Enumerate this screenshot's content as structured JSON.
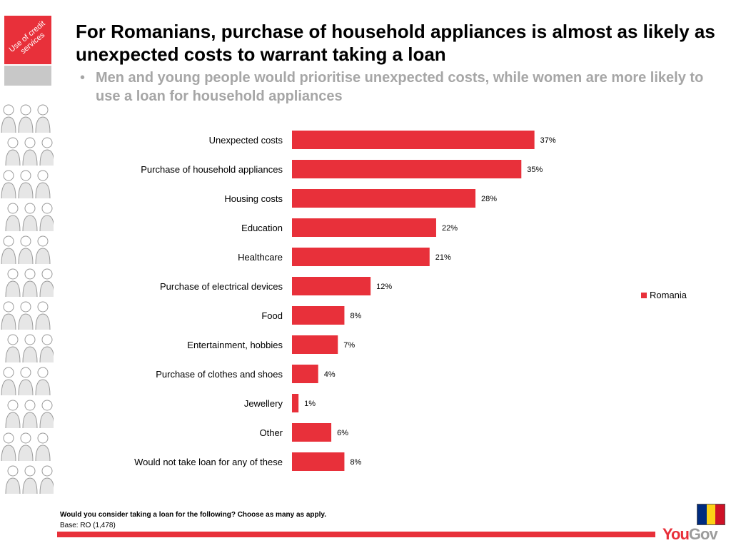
{
  "sidebar": {
    "tag": "Use of credit services"
  },
  "header": {
    "title": "For Romanians, purchase of household appliances is almost as likely as unexpected costs to warrant taking a loan",
    "bullet": "•",
    "subtitle": "Men and young people would prioritise unexpected costs, while women are more likely to use a loan for household appliances"
  },
  "chart_data": {
    "type": "bar",
    "orientation": "horizontal",
    "categories": [
      "Unexpected costs",
      "Purchase of household appliances",
      "Housing costs",
      "Education",
      "Healthcare",
      "Purchase of electrical devices",
      "Food",
      "Entertainment, hobbies",
      "Purchase of clothes and shoes",
      "Jewellery",
      "Other",
      "Would not take loan for any of these"
    ],
    "series": [
      {
        "name": "Romania",
        "values": [
          37,
          35,
          28,
          22,
          21,
          12,
          8,
          7,
          4,
          1,
          6,
          8
        ],
        "labels": [
          "37%",
          "35%",
          "28%",
          "22%",
          "21%",
          "12%",
          "8%",
          "7%",
          "4%",
          "1%",
          "6%",
          "8%"
        ]
      }
    ],
    "xlim": [
      0,
      40
    ],
    "grid": false,
    "legend_position": "right",
    "color": "#e8303a"
  },
  "footer": {
    "question": "Would you consider taking a loan for the following? Choose as many as apply.",
    "base": "Base: RO (1,478)",
    "logo_you": "You",
    "logo_gov": "Gov"
  },
  "flag_colors": [
    "#002b7f",
    "#fcd116",
    "#ce1126"
  ]
}
